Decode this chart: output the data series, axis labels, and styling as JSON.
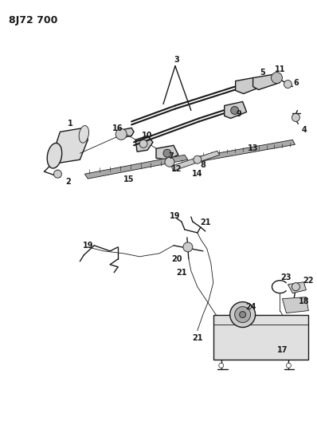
{
  "title": "8J72 700",
  "bg_color": "#ffffff",
  "line_color": "#1a1a1a",
  "title_fontsize": 9,
  "label_fontsize": 7,
  "figsize": [
    3.98,
    5.33
  ],
  "dpi": 100
}
